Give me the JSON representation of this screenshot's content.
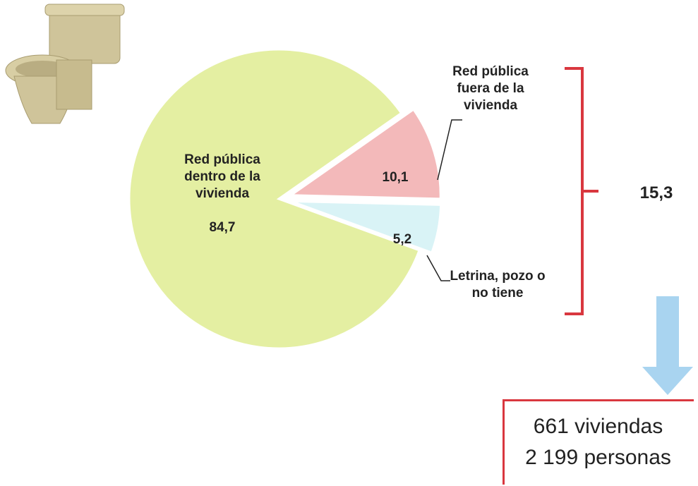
{
  "chart_data": {
    "type": "pie",
    "categories": [
      "Red pública dentro de la vivienda",
      "Red pública fuera de la vivienda",
      "Letrina, pozo o no tiene"
    ],
    "values": [
      84.7,
      10.1,
      5.2
    ],
    "value_labels": [
      "84,7",
      "10,1",
      "5,2"
    ],
    "colors": [
      "#e4efa2",
      "#f3b9ba",
      "#d9f3f6"
    ]
  },
  "total": "15,3",
  "summary": [
    "661 viviendas",
    "2 199 personas"
  ]
}
